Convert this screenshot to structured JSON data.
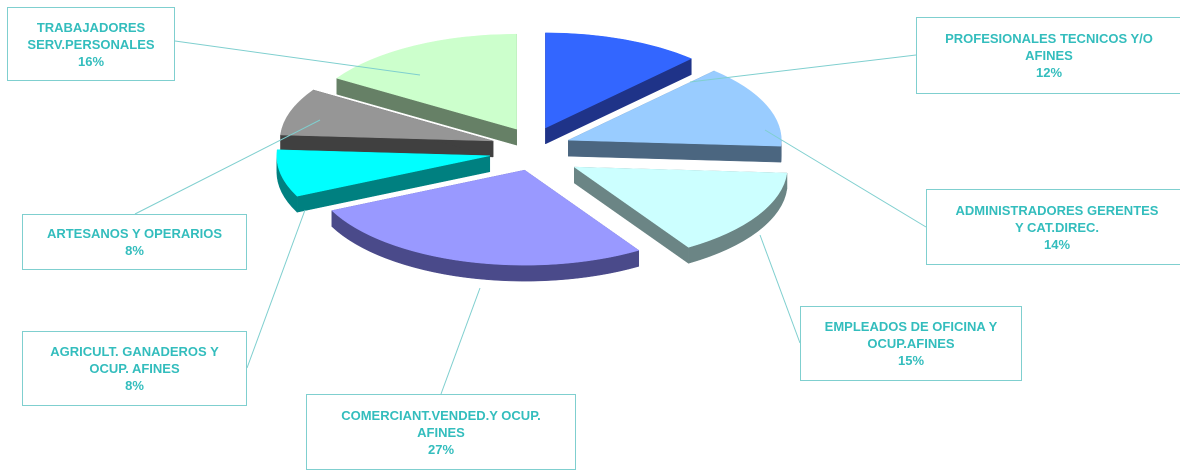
{
  "chart_data": {
    "type": "pie",
    "title": "",
    "legend": "none",
    "slices": [
      {
        "name_lines": [
          "PROFESIONALES  TECNICOS Y/O",
          "AFINES"
        ],
        "value": 12,
        "value_label": "12%",
        "color": "#3366ff",
        "side_color": "#1f3388"
      },
      {
        "name_lines": [
          "ADMINISTRADORES GERENTES",
          "Y CAT.DIREC."
        ],
        "value": 14,
        "value_label": "14%",
        "color": "#99ccff",
        "side_color": "#4b6680"
      },
      {
        "name_lines": [
          "EMPLEADOS DE OFICINA Y",
          "OCUP.AFINES"
        ],
        "value": 15,
        "value_label": "15%",
        "color": "#ccffff",
        "side_color": "#6b8585"
      },
      {
        "name_lines": [
          "COMERCIANT.VENDED.Y OCUP.",
          "AFINES"
        ],
        "value": 27,
        "value_label": "27%",
        "color": "#9999ff",
        "side_color": "#4a4a8a"
      },
      {
        "name_lines": [
          "AGRICULT. GANADEROS Y",
          "OCUP. AFINES"
        ],
        "value": 8,
        "value_label": "8%",
        "color": "#00ffff",
        "side_color": "#008080"
      },
      {
        "name_lines": [
          "ARTESANOS Y OPERARIOS"
        ],
        "value": 8,
        "value_label": "8%",
        "color": "#969696",
        "side_color": "#404040"
      },
      {
        "name_lines": [
          "TRABAJADORES",
          "SERV.PERSONALES"
        ],
        "value": 16,
        "value_label": "16%",
        "color": "#ccffcc",
        "side_color": "#668066"
      }
    ]
  }
}
